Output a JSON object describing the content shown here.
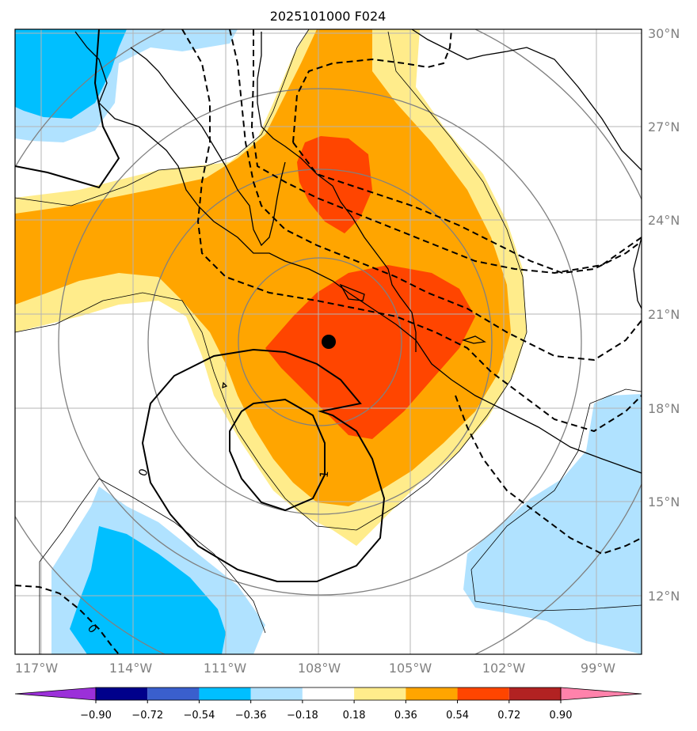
{
  "title": "2025101000 F024",
  "map": {
    "lat_labels": [
      "30°N",
      "27°N",
      "24°N",
      "21°N",
      "18°N",
      "15°N",
      "12°N"
    ],
    "lon_labels": [
      "117°W",
      "114°W",
      "111°W",
      "108°W",
      "105°W",
      "102°W",
      "99°W"
    ],
    "contour_labels": [
      "0",
      "1",
      "0"
    ],
    "center_marker": {
      "lat": 20.0,
      "lon": -107.6
    }
  },
  "colorbar": {
    "ticks": [
      "−0.90",
      "−0.72",
      "−0.54",
      "−0.36",
      "−0.18",
      "0.18",
      "0.36",
      "0.54",
      "0.72",
      "0.90"
    ],
    "colors": [
      "#9b30d9",
      "#00008b",
      "#3a5fcd",
      "#00bfff",
      "#b0e2ff",
      "#ffffff",
      "#ffec8b",
      "#ffa500",
      "#ff4500",
      "#b22222",
      "#ff82ab"
    ]
  },
  "colors": {
    "orange": "#ffa500",
    "red_orange": "#ff4500",
    "light_yellow": "#ffec8b",
    "deep_sky_blue": "#00bfff",
    "light_sky_blue": "#b0e2ff",
    "grid": "#b4b4b4",
    "label_gray": "#808080"
  }
}
